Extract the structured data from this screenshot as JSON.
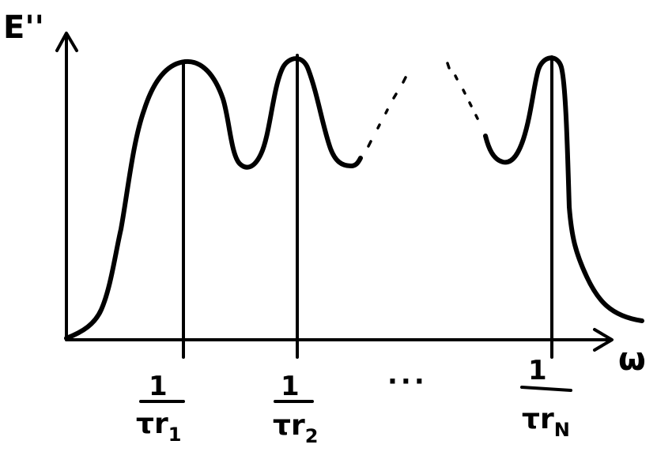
{
  "axes": {
    "y_label": "E''",
    "x_label": "ω"
  },
  "peaks": [
    {
      "numerator": "1",
      "symbol": "τ",
      "r": "r",
      "sub": "1"
    },
    {
      "numerator": "1",
      "symbol": "τ",
      "r": "r",
      "sub": "2"
    },
    {
      "numerator": "1",
      "symbol": "τ",
      "r": "r",
      "sub": "N"
    }
  ],
  "gap_label": "···",
  "colors": {
    "ink": "#000000",
    "paper": "#ffffff"
  }
}
